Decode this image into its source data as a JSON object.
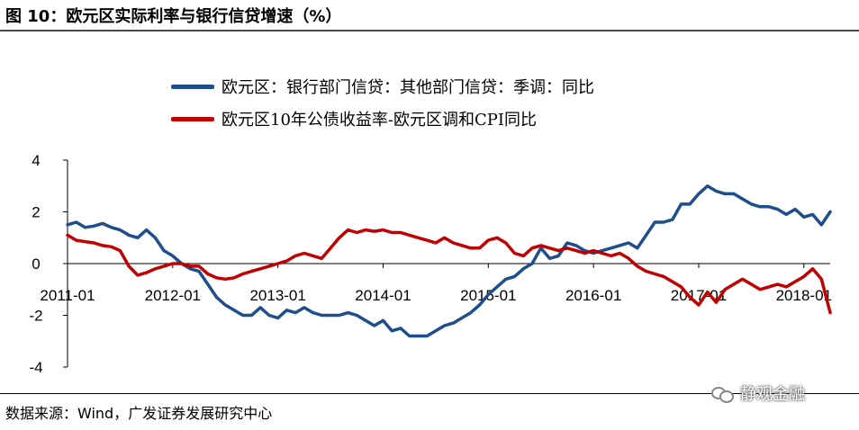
{
  "figure": {
    "title": "图 10：欧元区实际利率与银行信贷增速（%）",
    "source": "数据来源：Wind，广发证券发展研究中心",
    "watermark": "静观金融",
    "watermark_icon": "wechat-icon"
  },
  "chart_data": {
    "type": "line",
    "title": "图 10：欧元区实际利率与银行信贷增速（%）",
    "xlabel": "",
    "ylabel": "",
    "ylim": [
      -4,
      4
    ],
    "yticks": [
      -4,
      -2,
      0,
      2,
      4
    ],
    "xlim": [
      "2011-01",
      "2018-04"
    ],
    "xticks": [
      "2011-01",
      "2012-01",
      "2013-01",
      "2014-01",
      "2015-01",
      "2016-01",
      "2017-01",
      "2018-01"
    ],
    "grid": false,
    "legend": "top",
    "x": [
      "2011-01",
      "2011-02",
      "2011-03",
      "2011-04",
      "2011-05",
      "2011-06",
      "2011-07",
      "2011-08",
      "2011-09",
      "2011-10",
      "2011-11",
      "2011-12",
      "2012-01",
      "2012-02",
      "2012-03",
      "2012-04",
      "2012-05",
      "2012-06",
      "2012-07",
      "2012-08",
      "2012-09",
      "2012-10",
      "2012-11",
      "2012-12",
      "2013-01",
      "2013-02",
      "2013-03",
      "2013-04",
      "2013-05",
      "2013-06",
      "2013-07",
      "2013-08",
      "2013-09",
      "2013-10",
      "2013-11",
      "2013-12",
      "2014-01",
      "2014-02",
      "2014-03",
      "2014-04",
      "2014-05",
      "2014-06",
      "2014-07",
      "2014-08",
      "2014-09",
      "2014-10",
      "2014-11",
      "2014-12",
      "2015-01",
      "2015-02",
      "2015-03",
      "2015-04",
      "2015-05",
      "2015-06",
      "2015-07",
      "2015-08",
      "2015-09",
      "2015-10",
      "2015-11",
      "2015-12",
      "2016-01",
      "2016-02",
      "2016-03",
      "2016-04",
      "2016-05",
      "2016-06",
      "2016-07",
      "2016-08",
      "2016-09",
      "2016-10",
      "2016-11",
      "2016-12",
      "2017-01",
      "2017-02",
      "2017-03",
      "2017-04",
      "2017-05",
      "2017-06",
      "2017-07",
      "2017-08",
      "2017-09",
      "2017-10",
      "2017-11",
      "2017-12",
      "2018-01",
      "2018-02",
      "2018-03",
      "2018-04"
    ],
    "series": [
      {
        "name": "欧元区：银行部门信贷：其他部门信贷：季调：同比",
        "color": "#1f4e8c",
        "values": [
          1.5,
          1.6,
          1.4,
          1.45,
          1.55,
          1.4,
          1.3,
          1.1,
          1.0,
          1.3,
          1.0,
          0.5,
          0.3,
          0.0,
          -0.2,
          -0.3,
          -0.8,
          -1.3,
          -1.6,
          -1.8,
          -2.0,
          -2.0,
          -1.7,
          -2.0,
          -2.1,
          -1.8,
          -1.9,
          -1.7,
          -1.9,
          -2.0,
          -2.0,
          -2.0,
          -1.9,
          -2.0,
          -2.2,
          -2.4,
          -2.2,
          -2.6,
          -2.5,
          -2.8,
          -2.8,
          -2.8,
          -2.6,
          -2.4,
          -2.3,
          -2.1,
          -1.9,
          -1.6,
          -1.2,
          -0.9,
          -0.6,
          -0.5,
          -0.2,
          0.0,
          0.6,
          0.2,
          0.3,
          0.8,
          0.7,
          0.5,
          0.4,
          0.5,
          0.6,
          0.7,
          0.8,
          0.6,
          1.1,
          1.6,
          1.6,
          1.7,
          2.3,
          2.3,
          2.7,
          3.0,
          2.8,
          2.7,
          2.7,
          2.5,
          2.3,
          2.2,
          2.2,
          2.1,
          1.9,
          2.1,
          1.8,
          1.9,
          1.5,
          2.0
        ]
      },
      {
        "name": "欧元区10年公债收益率-欧元区调和CPI同比",
        "color": "#c00000",
        "values": [
          1.1,
          0.9,
          0.85,
          0.8,
          0.7,
          0.65,
          0.5,
          -0.1,
          -0.45,
          -0.35,
          -0.2,
          -0.1,
          0.0,
          0.0,
          -0.1,
          -0.1,
          -0.4,
          -0.55,
          -0.6,
          -0.55,
          -0.4,
          -0.3,
          -0.2,
          -0.1,
          0.0,
          0.1,
          0.3,
          0.4,
          0.3,
          0.2,
          0.6,
          1.0,
          1.3,
          1.2,
          1.3,
          1.25,
          1.3,
          1.2,
          1.2,
          1.1,
          1.0,
          0.9,
          0.8,
          1.0,
          0.8,
          0.7,
          0.6,
          0.6,
          0.9,
          1.0,
          0.8,
          0.4,
          0.3,
          0.6,
          0.7,
          0.6,
          0.5,
          0.6,
          0.5,
          0.4,
          0.5,
          0.4,
          0.3,
          0.4,
          0.2,
          -0.1,
          -0.3,
          -0.4,
          -0.5,
          -0.7,
          -0.9,
          -1.3,
          -1.6,
          -1.1,
          -1.5,
          -1.0,
          -0.8,
          -0.6,
          -0.8,
          -1.0,
          -0.9,
          -0.8,
          -0.9,
          -0.7,
          -0.5,
          -0.2,
          -0.6,
          -1.9
        ]
      }
    ]
  }
}
